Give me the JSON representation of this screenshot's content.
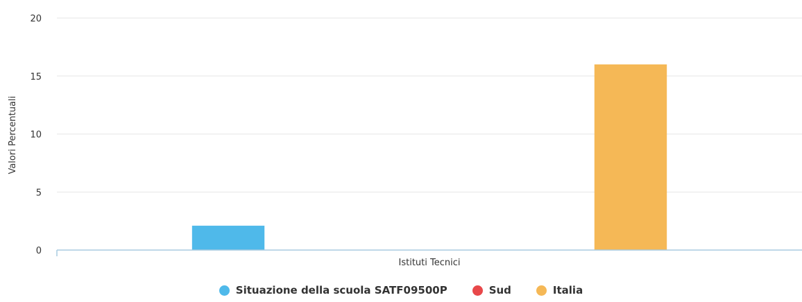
{
  "chart_data": {
    "type": "bar",
    "title": "",
    "xlabel": "",
    "ylabel": "Valori Percentuali",
    "categories": [
      "Istituti Tecnici"
    ],
    "ylim": [
      0,
      20
    ],
    "yticks": [
      0,
      5,
      10,
      15,
      20
    ],
    "grid": true,
    "legend_position": "bottom-center",
    "series": [
      {
        "name": "Situazione della scuola SATF09500P",
        "values": [
          2.1
        ],
        "color": "#4fb9ea"
      },
      {
        "name": "Sud",
        "values": [
          0
        ],
        "color": "#e8484a"
      },
      {
        "name": "Italia",
        "values": [
          16.0
        ],
        "color": "#f5b856"
      }
    ]
  }
}
